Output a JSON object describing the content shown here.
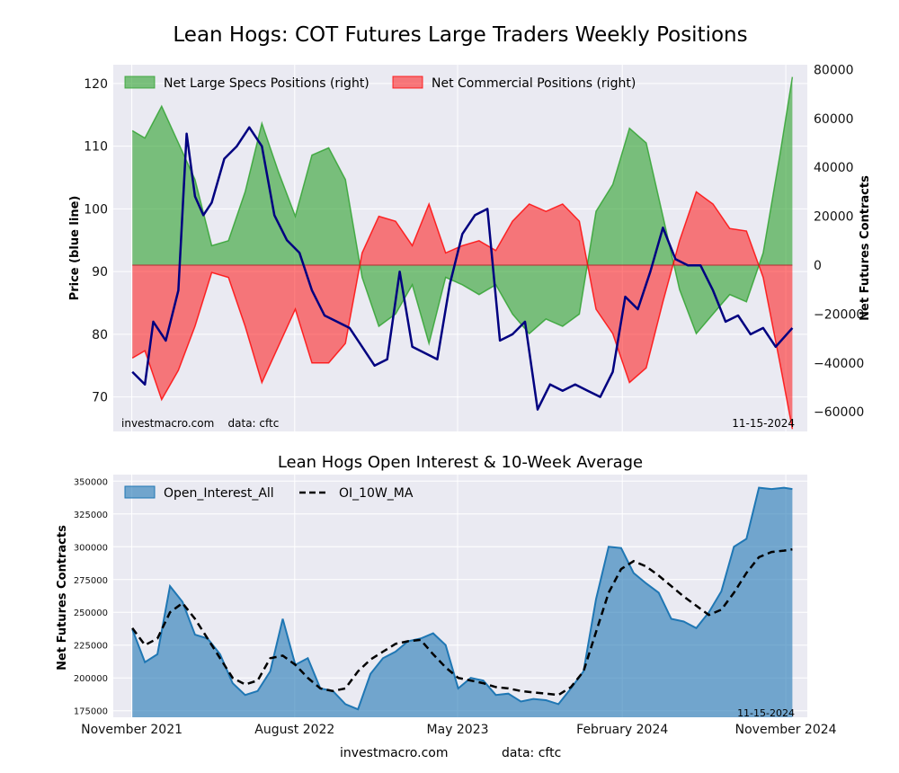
{
  "title": "Lean Hogs: COT Futures Large Traders Weekly Positions",
  "footer": {
    "site": "investmacro.com",
    "source": "data: cftc"
  },
  "colors": {
    "specs": "#2ca02c",
    "comm": "#ff0000",
    "price": "#000080",
    "oi": "#1f77b4",
    "ma": "#000000",
    "panel_bg": "#eaeaf2"
  },
  "chart_data": [
    {
      "type": "area",
      "title": "",
      "ylabel_left": "Price (blue line)",
      "ylabel_right": "Net Futures Contracts",
      "ylim_left": [
        64.5,
        123
      ],
      "ylim_right": [
        -68000,
        82000
      ],
      "yticks_left": [
        70,
        80,
        90,
        100,
        110,
        120
      ],
      "yticks_right": [
        -60000,
        -40000,
        -20000,
        0,
        20000,
        40000,
        60000,
        80000
      ],
      "xlim": [
        "2021-10-01",
        "2024-12-07"
      ],
      "grid": true,
      "legend_position": "top-left",
      "watermark": "investmacro.com    data: cftc",
      "date_label": "11-15-2024",
      "series": [
        {
          "name": "Net Large Specs Positions (right)",
          "kind": "area",
          "x": [
            "2021-11-02",
            "2021-11-23",
            "2021-12-21",
            "2022-01-18",
            "2022-02-15",
            "2022-03-15",
            "2022-04-12",
            "2022-05-10",
            "2022-06-07",
            "2022-07-05",
            "2022-08-02",
            "2022-08-30",
            "2022-09-27",
            "2022-10-25",
            "2022-11-22",
            "2022-12-20",
            "2023-01-17",
            "2023-02-14",
            "2023-03-14",
            "2023-04-11",
            "2023-05-09",
            "2023-06-06",
            "2023-07-04",
            "2023-08-01",
            "2023-08-29",
            "2023-09-26",
            "2023-10-24",
            "2023-11-21",
            "2023-12-19",
            "2024-01-16",
            "2024-02-13",
            "2024-03-12",
            "2024-04-09",
            "2024-05-07",
            "2024-06-04",
            "2024-07-02",
            "2024-07-30",
            "2024-08-27",
            "2024-09-24",
            "2024-10-22",
            "2024-11-12"
          ],
          "values": [
            55000,
            52000,
            65000,
            50000,
            35000,
            8000,
            10000,
            30000,
            58000,
            38000,
            20000,
            45000,
            48000,
            35000,
            -5000,
            -25000,
            -20000,
            -8000,
            -32000,
            -5000,
            -8000,
            -12000,
            -8000,
            -20000,
            -28000,
            -22000,
            -25000,
            -20000,
            22000,
            33000,
            56000,
            50000,
            20000,
            -10000,
            -28000,
            -20000,
            -12000,
            -15000,
            5000,
            45000,
            77000
          ]
        },
        {
          "name": "Net Commercial Positions (right)",
          "kind": "area",
          "x": [
            "2021-11-02",
            "2021-11-23",
            "2021-12-21",
            "2022-01-18",
            "2022-02-15",
            "2022-03-15",
            "2022-04-12",
            "2022-05-10",
            "2022-06-07",
            "2022-07-05",
            "2022-08-02",
            "2022-08-30",
            "2022-09-27",
            "2022-10-25",
            "2022-11-22",
            "2022-12-20",
            "2023-01-17",
            "2023-02-14",
            "2023-03-14",
            "2023-04-11",
            "2023-05-09",
            "2023-06-06",
            "2023-07-04",
            "2023-08-01",
            "2023-08-29",
            "2023-09-26",
            "2023-10-24",
            "2023-11-21",
            "2023-12-19",
            "2024-01-16",
            "2024-02-13",
            "2024-03-12",
            "2024-04-09",
            "2024-05-07",
            "2024-06-04",
            "2024-07-02",
            "2024-07-30",
            "2024-08-27",
            "2024-09-24",
            "2024-10-22",
            "2024-11-12"
          ],
          "values": [
            -38000,
            -35000,
            -55000,
            -43000,
            -25000,
            -3000,
            -5000,
            -25000,
            -48000,
            -33000,
            -18000,
            -40000,
            -40000,
            -32000,
            5000,
            20000,
            18000,
            8000,
            25000,
            5000,
            8000,
            10000,
            6000,
            18000,
            25000,
            22000,
            25000,
            18000,
            -18000,
            -28000,
            -48000,
            -42000,
            -15000,
            10000,
            30000,
            25000,
            15000,
            14000,
            -5000,
            -40000,
            -67000
          ]
        },
        {
          "name": "Price (blue line)",
          "kind": "line",
          "axis": "left",
          "x": [
            "2021-11-02",
            "2021-11-23",
            "2021-12-07",
            "2021-12-28",
            "2022-01-18",
            "2022-02-01",
            "2022-02-15",
            "2022-03-01",
            "2022-03-15",
            "2022-04-05",
            "2022-04-26",
            "2022-05-17",
            "2022-06-07",
            "2022-06-28",
            "2022-07-19",
            "2022-08-09",
            "2022-08-30",
            "2022-09-20",
            "2022-10-11",
            "2022-11-01",
            "2022-11-22",
            "2022-12-13",
            "2023-01-03",
            "2023-01-24",
            "2023-02-14",
            "2023-03-07",
            "2023-03-28",
            "2023-04-18",
            "2023-05-09",
            "2023-05-30",
            "2023-06-20",
            "2023-07-11",
            "2023-08-01",
            "2023-08-22",
            "2023-09-12",
            "2023-10-03",
            "2023-10-24",
            "2023-11-14",
            "2023-12-05",
            "2023-12-26",
            "2024-01-16",
            "2024-02-06",
            "2024-02-27",
            "2024-03-19",
            "2024-04-09",
            "2024-04-30",
            "2024-05-21",
            "2024-06-11",
            "2024-07-02",
            "2024-07-23",
            "2024-08-13",
            "2024-09-03",
            "2024-09-24",
            "2024-10-15",
            "2024-11-12"
          ],
          "values": [
            74,
            72,
            82,
            79,
            87,
            112,
            102,
            99,
            101,
            108,
            110,
            113,
            110,
            99,
            95,
            93,
            87,
            83,
            82,
            81,
            78,
            75,
            76,
            90,
            78,
            77,
            76,
            88,
            96,
            99,
            100,
            79,
            80,
            82,
            68,
            72,
            71,
            72,
            71,
            70,
            74,
            86,
            84,
            90,
            97,
            92,
            91,
            91,
            87,
            82,
            83,
            80,
            81,
            78,
            81
          ]
        }
      ]
    },
    {
      "type": "area",
      "title": "Lean Hogs Open Interest & 10-Week Average",
      "ylabel": "Net Futures Contracts",
      "ylim": [
        170000,
        355000
      ],
      "yticks": [
        175000,
        200000,
        225000,
        250000,
        275000,
        300000,
        325000,
        350000
      ],
      "xlim": [
        "2021-10-01",
        "2024-12-07"
      ],
      "xticks": [
        "November 2021",
        "August 2022",
        "May 2023",
        "February 2024",
        "November 2024"
      ],
      "xtick_dates": [
        "2021-11-01",
        "2022-08-01",
        "2023-05-01",
        "2024-02-01",
        "2024-11-01"
      ],
      "grid": true,
      "legend_position": "top-left",
      "date_label": "11-15-2024",
      "series": [
        {
          "name": "Open_Interest_All",
          "kind": "area",
          "x": [
            "2021-11-02",
            "2021-11-23",
            "2021-12-14",
            "2022-01-04",
            "2022-01-25",
            "2022-02-15",
            "2022-03-08",
            "2022-03-29",
            "2022-04-19",
            "2022-05-10",
            "2022-05-31",
            "2022-06-21",
            "2022-07-12",
            "2022-08-02",
            "2022-08-23",
            "2022-09-13",
            "2022-10-04",
            "2022-10-25",
            "2022-11-15",
            "2022-12-06",
            "2022-12-27",
            "2023-01-17",
            "2023-02-07",
            "2023-02-28",
            "2023-03-21",
            "2023-04-11",
            "2023-05-02",
            "2023-05-23",
            "2023-06-13",
            "2023-07-04",
            "2023-07-25",
            "2023-08-15",
            "2023-09-05",
            "2023-09-26",
            "2023-10-17",
            "2023-11-07",
            "2023-11-28",
            "2023-12-19",
            "2024-01-09",
            "2024-01-30",
            "2024-02-20",
            "2024-03-12",
            "2024-04-02",
            "2024-04-23",
            "2024-05-14",
            "2024-06-04",
            "2024-06-25",
            "2024-07-16",
            "2024-08-06",
            "2024-08-27",
            "2024-09-17",
            "2024-10-08",
            "2024-10-29",
            "2024-11-12"
          ],
          "values": [
            237000,
            212000,
            218000,
            270000,
            258000,
            233000,
            230000,
            218000,
            196000,
            187000,
            190000,
            205000,
            245000,
            210000,
            215000,
            192000,
            190000,
            180000,
            176000,
            203000,
            215000,
            220000,
            228000,
            230000,
            234000,
            225000,
            192000,
            200000,
            198000,
            187000,
            188000,
            182000,
            184000,
            183000,
            180000,
            192000,
            205000,
            260000,
            300000,
            299000,
            280000,
            272000,
            265000,
            245000,
            243000,
            238000,
            250000,
            266000,
            300000,
            306000,
            345000,
            344000,
            345000,
            344000
          ]
        },
        {
          "name": "OI_10W_MA",
          "kind": "line",
          "style": "dashed",
          "x": [
            "2021-11-02",
            "2021-11-23",
            "2021-12-14",
            "2022-01-04",
            "2022-01-25",
            "2022-02-15",
            "2022-03-08",
            "2022-03-29",
            "2022-04-19",
            "2022-05-10",
            "2022-05-31",
            "2022-06-21",
            "2022-07-12",
            "2022-08-02",
            "2022-08-23",
            "2022-09-13",
            "2022-10-04",
            "2022-10-25",
            "2022-11-15",
            "2022-12-06",
            "2022-12-27",
            "2023-01-17",
            "2023-02-07",
            "2023-02-28",
            "2023-03-21",
            "2023-04-11",
            "2023-05-02",
            "2023-05-23",
            "2023-06-13",
            "2023-07-04",
            "2023-07-25",
            "2023-08-15",
            "2023-09-05",
            "2023-09-26",
            "2023-10-17",
            "2023-11-07",
            "2023-11-28",
            "2023-12-19",
            "2024-01-09",
            "2024-01-30",
            "2024-02-20",
            "2024-03-12",
            "2024-04-02",
            "2024-04-23",
            "2024-05-14",
            "2024-06-04",
            "2024-06-25",
            "2024-07-16",
            "2024-08-06",
            "2024-08-27",
            "2024-09-17",
            "2024-10-08",
            "2024-10-29",
            "2024-11-12"
          ],
          "values": [
            238000,
            225000,
            230000,
            250000,
            257000,
            245000,
            230000,
            215000,
            200000,
            195000,
            198000,
            215000,
            217000,
            210000,
            200000,
            192000,
            190000,
            192000,
            205000,
            214000,
            220000,
            226000,
            228000,
            229000,
            218000,
            208000,
            200000,
            198000,
            196000,
            193000,
            192000,
            190000,
            189000,
            188000,
            187000,
            193000,
            205000,
            235000,
            265000,
            283000,
            289000,
            285000,
            278000,
            270000,
            262000,
            255000,
            248000,
            252000,
            265000,
            280000,
            292000,
            296000,
            297000,
            298000
          ]
        }
      ]
    }
  ]
}
